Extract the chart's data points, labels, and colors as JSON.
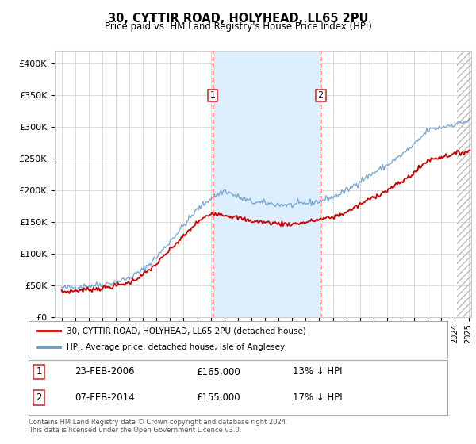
{
  "title": "30, CYTTIR ROAD, HOLYHEAD, LL65 2PU",
  "subtitle": "Price paid vs. HM Land Registry's House Price Index (HPI)",
  "legend_line1": "30, CYTTIR ROAD, HOLYHEAD, LL65 2PU (detached house)",
  "legend_line2": "HPI: Average price, detached house, Isle of Anglesey",
  "event1_date": "23-FEB-2006",
  "event1_price": "£165,000",
  "event1_pct": "13% ↓ HPI",
  "event1_x": 2006.14,
  "event2_date": "07-FEB-2014",
  "event2_price": "£155,000",
  "event2_pct": "17% ↓ HPI",
  "event2_x": 2014.1,
  "footer": "Contains HM Land Registry data © Crown copyright and database right 2024.\nThis data is licensed under the Open Government Licence v3.0.",
  "ylim": [
    0,
    420000
  ],
  "xlim": [
    1994.5,
    2025.2
  ],
  "yticks": [
    0,
    50000,
    100000,
    150000,
    200000,
    250000,
    300000,
    350000,
    400000
  ],
  "ytick_labels": [
    "£0",
    "£50K",
    "£100K",
    "£150K",
    "£200K",
    "£250K",
    "£300K",
    "£350K",
    "£400K"
  ],
  "red_color": "#cc0000",
  "blue_color": "#6699cc",
  "shade_color": "#ddeeff",
  "grid_color": "#cccccc",
  "hatch_color": "#bbbbbb",
  "bg_color": "#ffffff",
  "event_box_color": "#cc3333"
}
